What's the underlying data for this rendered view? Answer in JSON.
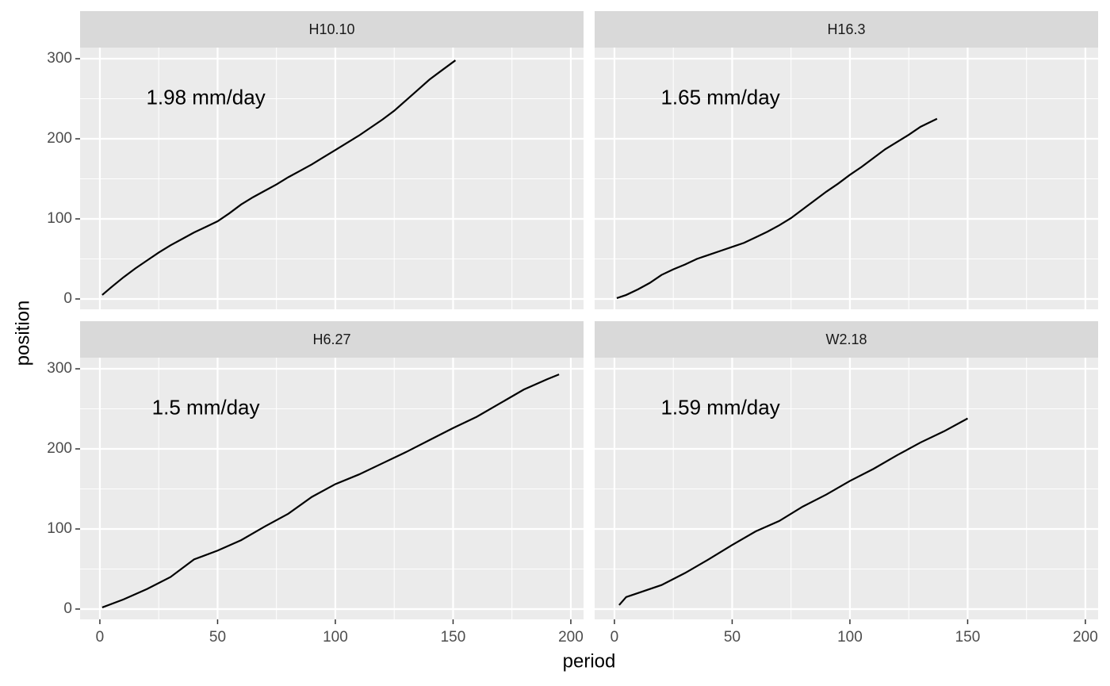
{
  "chart_data": {
    "type": "line",
    "x_label": "period",
    "y_label": "position",
    "color": "#000000",
    "xlim": [
      -8.4,
      205.4
    ],
    "xticks": [
      0,
      50,
      100,
      150,
      200
    ],
    "ylim": [
      -12.9,
      313.9
    ],
    "yticks": [
      0,
      100,
      200,
      300
    ],
    "grid": true,
    "panels": [
      {
        "title": "H10.10",
        "annotation": "1.98 mm/day",
        "x": [
          1,
          5,
          10,
          15,
          20,
          25,
          30,
          35,
          40,
          45,
          50,
          55,
          60,
          65,
          70,
          75,
          80,
          85,
          90,
          95,
          100,
          105,
          110,
          115,
          120,
          125,
          130,
          135,
          140,
          145,
          151
        ],
        "values": [
          5,
          15,
          27,
          38,
          48,
          58,
          67,
          75,
          83,
          90,
          97,
          107,
          118,
          127,
          135,
          143,
          152,
          160,
          168,
          177,
          186,
          195,
          204,
          214,
          224,
          235,
          248,
          261,
          274,
          285,
          298
        ]
      },
      {
        "title": "H16.3",
        "annotation": "1.65 mm/day",
        "x": [
          1,
          5,
          10,
          15,
          20,
          25,
          30,
          35,
          40,
          45,
          50,
          55,
          60,
          65,
          70,
          75,
          80,
          85,
          90,
          95,
          100,
          105,
          110,
          115,
          120,
          125,
          130,
          137
        ],
        "values": [
          1,
          5,
          12,
          20,
          30,
          37,
          43,
          50,
          55,
          60,
          65,
          70,
          77,
          84,
          92,
          101,
          112,
          123,
          134,
          144,
          155,
          165,
          176,
          187,
          196,
          205,
          215,
          225
        ]
      },
      {
        "title": "H6.27",
        "annotation": "1.5 mm/day",
        "x": [
          1,
          10,
          20,
          30,
          40,
          50,
          60,
          70,
          80,
          90,
          100,
          110,
          120,
          130,
          140,
          150,
          160,
          170,
          180,
          190,
          195
        ],
        "values": [
          2,
          12,
          25,
          40,
          62,
          73,
          86,
          103,
          119,
          140,
          156,
          168,
          182,
          196,
          211,
          226,
          240,
          257,
          274,
          287,
          293
        ]
      },
      {
        "title": "W2.18",
        "annotation": "1.59 mm/day",
        "x": [
          2,
          5,
          10,
          20,
          30,
          40,
          50,
          60,
          70,
          80,
          90,
          100,
          110,
          120,
          130,
          140,
          150
        ],
        "values": [
          5,
          15,
          20,
          30,
          45,
          62,
          80,
          97,
          110,
          128,
          143,
          160,
          175,
          192,
          208,
          222,
          238
        ]
      }
    ]
  }
}
